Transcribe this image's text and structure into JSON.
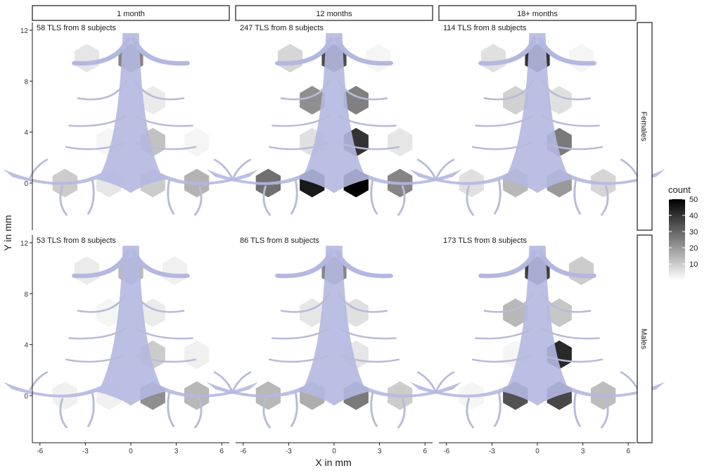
{
  "chart_data": {
    "type": "heatmap",
    "subtype": "hexbin",
    "xlabel": "X in mm",
    "ylabel": "Y in mm",
    "xlim": [
      -6.5,
      6.5
    ],
    "ylim": [
      -3.7,
      12.6
    ],
    "x_ticks": [
      -6,
      -3,
      0,
      3,
      6
    ],
    "y_ticks": [
      0,
      4,
      8,
      12
    ],
    "col_facets": [
      "1 month",
      "12 months",
      "18+ months"
    ],
    "row_facets": [
      "Females",
      "Males"
    ],
    "legend": {
      "title": "count",
      "position": "right",
      "ticks": [
        10,
        20,
        30,
        40,
        50
      ],
      "range": [
        0,
        50
      ],
      "low_color": "#ffffff",
      "high_color": "#000000"
    },
    "background_overlay": "vascular-tree-illustration",
    "overlay_color": "#b4b8e0",
    "grid": false,
    "hex_centers": [
      {
        "x": -4.4,
        "y": 9.0
      },
      {
        "x": -1.5,
        "y": 9.0
      },
      {
        "x": 1.5,
        "y": 9.0
      },
      {
        "x": 4.4,
        "y": 9.0
      },
      {
        "x": 0.0,
        "y": 6.0
      },
      {
        "x": 2.9,
        "y": 6.0
      },
      {
        "x": -2.9,
        "y": 3.0
      },
      {
        "x": 0.0,
        "y": 3.0
      },
      {
        "x": 2.9,
        "y": 3.0
      },
      {
        "x": -5.8,
        "y": 0.0
      },
      {
        "x": -2.9,
        "y": 0.0
      },
      {
        "x": 0.0,
        "y": 0.0
      },
      {
        "x": 2.9,
        "y": 0.0
      },
      {
        "x": 5.8,
        "y": 0.0
      }
    ],
    "panels": [
      {
        "row": "Females",
        "col": "1 month",
        "label": "58 TLS from 8 subjects",
        "cells": [
          {
            "x": -2.9,
            "y": 9.8,
            "count": 5
          },
          {
            "x": 0.0,
            "y": 9.8,
            "count": 24
          },
          {
            "x": 1.45,
            "y": 6.5,
            "count": 4
          },
          {
            "x": -1.45,
            "y": 3.2,
            "count": 2
          },
          {
            "x": 1.45,
            "y": 3.2,
            "count": 12
          },
          {
            "x": 4.35,
            "y": 3.2,
            "count": 2
          },
          {
            "x": -4.35,
            "y": 0.0,
            "count": 10
          },
          {
            "x": -1.45,
            "y": 0.0,
            "count": 5
          },
          {
            "x": 1.45,
            "y": 0.0,
            "count": 10
          },
          {
            "x": 4.35,
            "y": 0.0,
            "count": 15
          }
        ]
      },
      {
        "row": "Females",
        "col": "12 months",
        "label": "247 TLS from 8 subjects",
        "cells": [
          {
            "x": -2.9,
            "y": 9.8,
            "count": 8
          },
          {
            "x": 0.0,
            "y": 9.8,
            "count": 35
          },
          {
            "x": 2.9,
            "y": 9.8,
            "count": 2
          },
          {
            "x": -1.45,
            "y": 6.5,
            "count": 22
          },
          {
            "x": 1.45,
            "y": 6.5,
            "count": 25
          },
          {
            "x": -1.45,
            "y": 3.2,
            "count": 6
          },
          {
            "x": 1.45,
            "y": 3.2,
            "count": 40
          },
          {
            "x": 4.35,
            "y": 3.2,
            "count": 5
          },
          {
            "x": -4.35,
            "y": 0.0,
            "count": 28
          },
          {
            "x": -1.45,
            "y": 0.0,
            "count": 45
          },
          {
            "x": 1.45,
            "y": 0.0,
            "count": 50
          },
          {
            "x": 4.35,
            "y": 0.0,
            "count": 24
          }
        ]
      },
      {
        "row": "Females",
        "col": "18+ months",
        "label": "114 TLS from 8 subjects",
        "cells": [
          {
            "x": -2.9,
            "y": 9.8,
            "count": 6
          },
          {
            "x": 0.0,
            "y": 9.8,
            "count": 40
          },
          {
            "x": 2.9,
            "y": 9.8,
            "count": 2
          },
          {
            "x": -1.45,
            "y": 6.5,
            "count": 9
          },
          {
            "x": 1.45,
            "y": 6.5,
            "count": 6
          },
          {
            "x": 1.45,
            "y": 3.2,
            "count": 26
          },
          {
            "x": -4.35,
            "y": 0.0,
            "count": 6
          },
          {
            "x": -1.45,
            "y": 0.0,
            "count": 14
          },
          {
            "x": 1.45,
            "y": 0.0,
            "count": 20
          },
          {
            "x": 4.35,
            "y": 0.0,
            "count": 8
          }
        ]
      },
      {
        "row": "Males",
        "col": "1 month",
        "label": "53 TLS from 8 subjects",
        "cells": [
          {
            "x": -2.9,
            "y": 9.8,
            "count": 4
          },
          {
            "x": 0.0,
            "y": 9.8,
            "count": 14
          },
          {
            "x": 2.9,
            "y": 9.8,
            "count": 3
          },
          {
            "x": -1.45,
            "y": 6.5,
            "count": 2
          },
          {
            "x": 1.45,
            "y": 6.5,
            "count": 4
          },
          {
            "x": 1.45,
            "y": 3.2,
            "count": 10
          },
          {
            "x": 4.35,
            "y": 3.2,
            "count": 3
          },
          {
            "x": -4.35,
            "y": 0.0,
            "count": 3
          },
          {
            "x": -1.45,
            "y": 0.0,
            "count": 3
          },
          {
            "x": 1.45,
            "y": 0.0,
            "count": 22
          },
          {
            "x": 4.35,
            "y": 0.0,
            "count": 14
          }
        ]
      },
      {
        "row": "Males",
        "col": "12 months",
        "label": "86 TLS from 8 subjects",
        "cells": [
          {
            "x": 0.0,
            "y": 9.8,
            "count": 24
          },
          {
            "x": -1.45,
            "y": 6.5,
            "count": 5
          },
          {
            "x": 1.45,
            "y": 6.5,
            "count": 6
          },
          {
            "x": 1.45,
            "y": 3.2,
            "count": 5
          },
          {
            "x": -4.35,
            "y": 0.0,
            "count": 14
          },
          {
            "x": -1.45,
            "y": 0.0,
            "count": 16
          },
          {
            "x": 1.45,
            "y": 0.0,
            "count": 26
          },
          {
            "x": 4.35,
            "y": 0.0,
            "count": 10
          }
        ]
      },
      {
        "row": "Males",
        "col": "18+ months",
        "label": "173 TLS from 8 subjects",
        "cells": [
          {
            "x": 0.0,
            "y": 9.8,
            "count": 38
          },
          {
            "x": 2.9,
            "y": 9.8,
            "count": 10
          },
          {
            "x": -1.45,
            "y": 6.5,
            "count": 14
          },
          {
            "x": 1.45,
            "y": 6.5,
            "count": 11
          },
          {
            "x": -1.45,
            "y": 3.2,
            "count": 2
          },
          {
            "x": 1.45,
            "y": 3.2,
            "count": 42
          },
          {
            "x": -4.35,
            "y": 0.0,
            "count": 2
          },
          {
            "x": -1.45,
            "y": 0.0,
            "count": 34
          },
          {
            "x": 1.45,
            "y": 0.0,
            "count": 36
          },
          {
            "x": 4.35,
            "y": 0.0,
            "count": 13
          }
        ]
      }
    ]
  }
}
